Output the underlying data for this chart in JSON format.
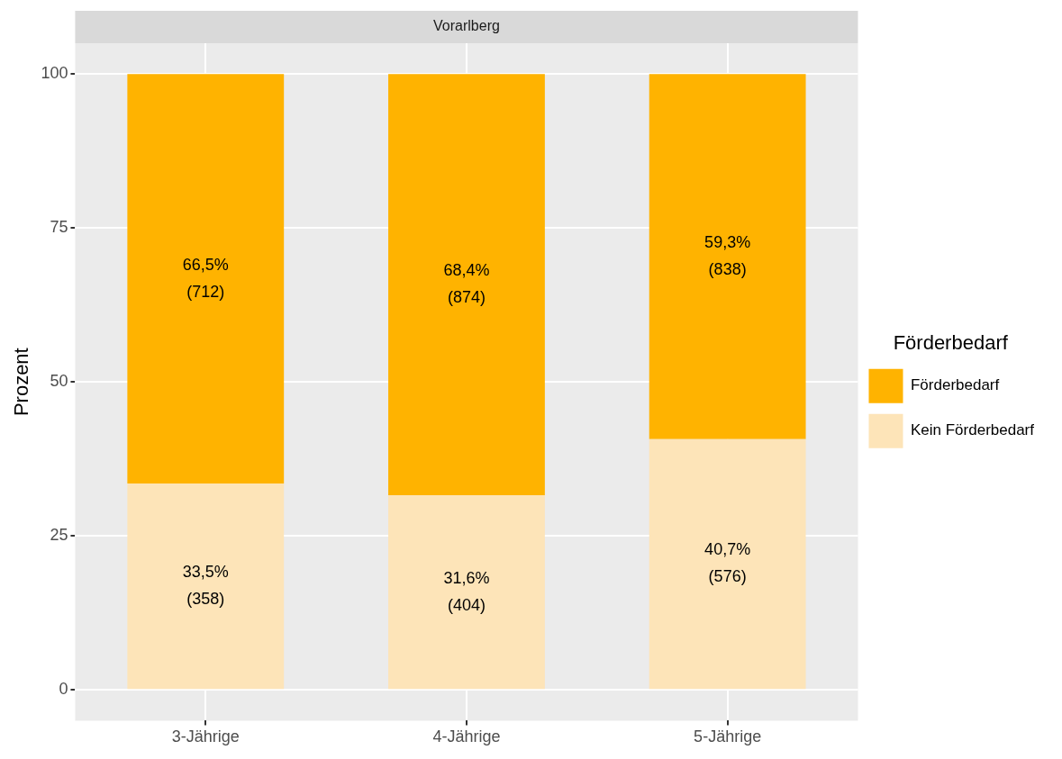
{
  "chart_data": {
    "type": "bar",
    "title": "Vorarlberg",
    "ylabel": "Prozent",
    "legend_title": "Förderbedarf",
    "categories": [
      "3-Jährige",
      "4-Jährige",
      "5-Jährige"
    ],
    "stacked": true,
    "legend": "right",
    "grid": true,
    "ylim": [
      -5,
      105
    ],
    "yticks": [
      0,
      25,
      50,
      75,
      100
    ],
    "series": [
      {
        "name": "Kein Förderbedarf",
        "color": "#fde4b8",
        "values": [
          33.5,
          31.6,
          40.7
        ],
        "value_labels": [
          "33,5%\n(358)",
          "31,6%\n(404)",
          "40,7%\n(576)"
        ]
      },
      {
        "name": "Förderbedarf",
        "color": "#ffb300",
        "values": [
          66.5,
          68.4,
          59.3
        ],
        "value_labels": [
          "66,5%\n(712)",
          "68,4%\n(874)",
          "59,3%\n(838)"
        ]
      }
    ]
  }
}
